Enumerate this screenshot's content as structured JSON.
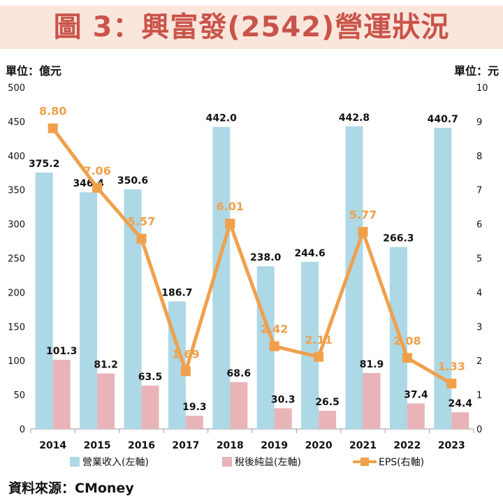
{
  "header": {
    "title": "圖 3：興富發(2542)營運狀況"
  },
  "units": {
    "left": "單位：億元",
    "right": "單位：元"
  },
  "source": "資料來源：CMoney",
  "colors": {
    "revenue": "#add8e6",
    "net_income": "#e8b4b8",
    "eps": "#f0a04b",
    "title": "#c9544a",
    "title_band": "#fbe6dc"
  },
  "chart_data": {
    "type": "bar",
    "categories": [
      "2014",
      "2015",
      "2016",
      "2017",
      "2018",
      "2019",
      "2020",
      "2021",
      "2022",
      "2023"
    ],
    "series": [
      {
        "name": "營業收入(左軸)",
        "type": "bar",
        "axis": "left",
        "values": [
          375.2,
          346.4,
          350.6,
          186.7,
          442.0,
          238.0,
          244.6,
          442.8,
          266.3,
          440.7
        ],
        "labels": [
          "375.2",
          "346.4",
          "350.6",
          "186.7",
          "442.0",
          "238.0",
          "244.6",
          "442.8",
          "266.3",
          "440.7"
        ]
      },
      {
        "name": "稅後純益(左軸)",
        "type": "bar",
        "axis": "left",
        "values": [
          101.3,
          81.2,
          63.5,
          19.3,
          68.6,
          30.3,
          26.5,
          81.9,
          37.4,
          24.4
        ],
        "labels": [
          "101.3",
          "81.2",
          "63.5",
          "19.3",
          "68.6",
          "30.3",
          "26.5",
          "81.9",
          "37.4",
          "24.4"
        ]
      },
      {
        "name": "EPS(右軸)",
        "type": "line",
        "axis": "right",
        "values": [
          8.8,
          7.06,
          5.57,
          1.69,
          6.01,
          2.42,
          2.11,
          5.77,
          2.08,
          1.33
        ],
        "labels": [
          "8.80",
          "7.06",
          "5.57",
          "1.69",
          "6.01",
          "2.42",
          "2.11",
          "5.77",
          "2.08",
          "1.33"
        ]
      }
    ],
    "ylim_left": [
      0,
      500
    ],
    "yticks_left": [
      "0",
      "50",
      "100",
      "150",
      "200",
      "250",
      "300",
      "350",
      "400",
      "450",
      "500"
    ],
    "ylim_right": [
      0,
      10
    ],
    "yticks_right": [
      "0",
      "1",
      "2",
      "3",
      "4",
      "5",
      "6",
      "7",
      "8",
      "9",
      "10"
    ],
    "grid": false,
    "legend_position": "bottom"
  }
}
